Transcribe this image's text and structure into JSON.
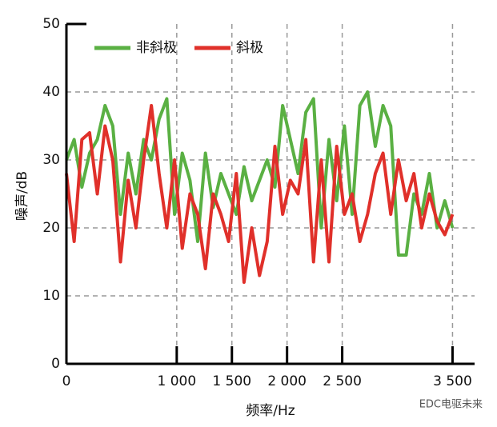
{
  "chart_data": {
    "type": "line",
    "x_label": "频率/Hz",
    "y_label": "噪声/dB",
    "watermark": "EDC电驱未来",
    "x": [
      0,
      70,
      140,
      210,
      280,
      350,
      420,
      490,
      560,
      630,
      700,
      770,
      840,
      910,
      980,
      1050,
      1120,
      1190,
      1260,
      1330,
      1400,
      1470,
      1540,
      1610,
      1680,
      1750,
      1820,
      1890,
      1960,
      2030,
      2100,
      2170,
      2240,
      2310,
      2380,
      2450,
      2520,
      2590,
      2660,
      2730,
      2800,
      2870,
      2940,
      3010,
      3080,
      3150,
      3220,
      3290,
      3360,
      3430,
      3500
    ],
    "series": [
      {
        "name": "非斜极",
        "color": "#5ab043",
        "values": [
          30,
          33,
          26,
          31,
          33,
          38,
          35,
          22,
          31,
          25,
          33,
          30,
          36,
          39,
          22,
          31,
          27,
          18,
          31,
          23,
          28,
          25,
          22,
          29,
          24,
          27,
          30,
          26,
          38,
          33,
          28,
          37,
          39,
          20,
          33,
          24,
          35,
          22,
          38,
          40,
          32,
          38,
          35,
          16,
          16,
          25,
          22,
          28,
          20,
          24,
          20
        ]
      },
      {
        "name": "斜极",
        "color": "#e0302a",
        "values": [
          28,
          18,
          33,
          34,
          25,
          35,
          30,
          15,
          27,
          20,
          30,
          38,
          28,
          20,
          30,
          17,
          25,
          22,
          14,
          25,
          22,
          18,
          28,
          12,
          20,
          13,
          18,
          32,
          22,
          27,
          25,
          33,
          15,
          30,
          15,
          32,
          22,
          25,
          18,
          22,
          28,
          31,
          22,
          30,
          24,
          28,
          20,
          25,
          21,
          19,
          22
        ]
      }
    ],
    "xlim": [
      0,
      3700
    ],
    "xticks": [
      0,
      {
        "value": 1000,
        "label": "1 000"
      },
      {
        "value": 1500,
        "label": "1 500"
      },
      {
        "value": 2000,
        "label": "2 000"
      },
      {
        "value": 2500,
        "label": "2 500"
      },
      {
        "value": 3500,
        "label": "3 500"
      }
    ],
    "ylim": [
      0,
      50
    ],
    "yticks": [
      0,
      10,
      20,
      30,
      40,
      50
    ],
    "grid": true,
    "legend": "top-left"
  }
}
